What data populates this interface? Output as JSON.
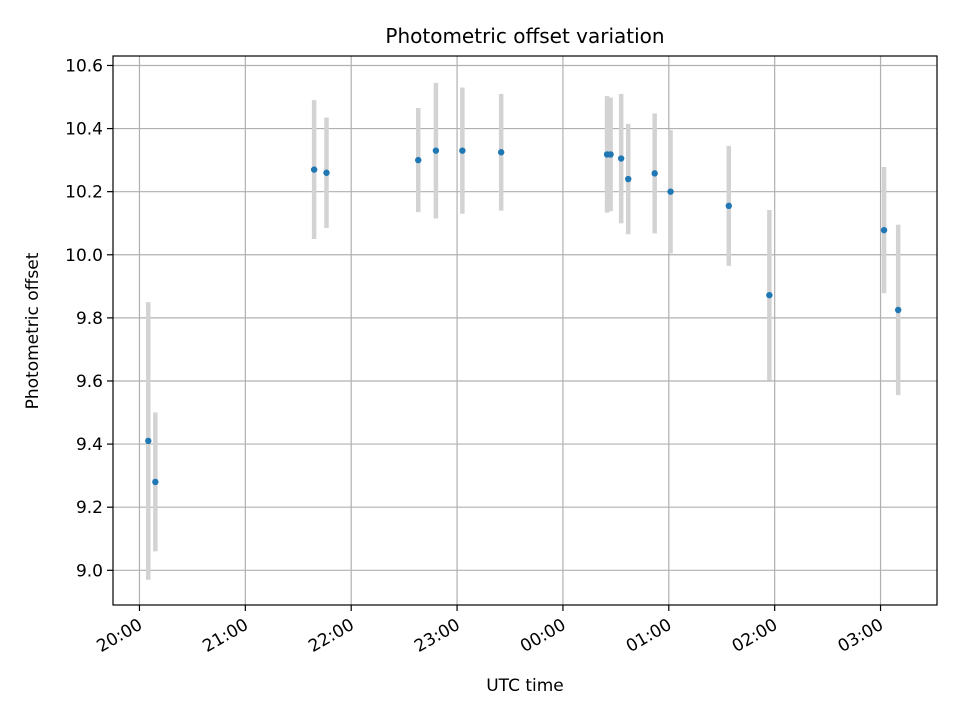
{
  "chart_data": {
    "type": "scatter",
    "title": "Photometric offset variation",
    "xlabel": "UTC time",
    "ylabel": "Photometric offset",
    "x_unit": "UTC time (HH:MM)",
    "xlim": [
      "19:45",
      "03:32"
    ],
    "ylim": [
      8.89,
      10.63
    ],
    "yticks": [
      9.0,
      9.2,
      9.4,
      9.6,
      9.8,
      10.0,
      10.2,
      10.4,
      10.6
    ],
    "ytick_labels": [
      "9.0",
      "9.2",
      "9.4",
      "9.6",
      "9.8",
      "10.0",
      "10.2",
      "10.4",
      "10.6"
    ],
    "xticks": [
      "20:00",
      "21:00",
      "22:00",
      "23:00",
      "00:00",
      "01:00",
      "02:00",
      "03:00"
    ],
    "grid": true,
    "point_color": "#1f77b4",
    "errorbar_color": "#d3d3d3",
    "points": [
      {
        "x": "20:05",
        "y": 9.41,
        "err": 0.44
      },
      {
        "x": "20:09",
        "y": 9.28,
        "err": 0.22
      },
      {
        "x": "21:39",
        "y": 10.27,
        "err": 0.22
      },
      {
        "x": "21:46",
        "y": 10.26,
        "err": 0.175
      },
      {
        "x": "22:38",
        "y": 10.3,
        "err": 0.165
      },
      {
        "x": "22:48",
        "y": 10.33,
        "err": 0.215
      },
      {
        "x": "23:03",
        "y": 10.33,
        "err": 0.2
      },
      {
        "x": "23:25",
        "y": 10.325,
        "err": 0.185
      },
      {
        "x": "00:25",
        "y": 10.318,
        "err": 0.185
      },
      {
        "x": "00:27",
        "y": 10.318,
        "err": 0.18
      },
      {
        "x": "00:33",
        "y": 10.305,
        "err": 0.205
      },
      {
        "x": "00:37",
        "y": 10.24,
        "err": 0.175
      },
      {
        "x": "00:52",
        "y": 10.258,
        "err": 0.19
      },
      {
        "x": "01:01",
        "y": 10.2,
        "err": 0.195
      },
      {
        "x": "01:34",
        "y": 10.155,
        "err": 0.19
      },
      {
        "x": "01:57",
        "y": 9.872,
        "err": 0.27
      },
      {
        "x": "03:02",
        "y": 10.078,
        "err": 0.2
      },
      {
        "x": "03:10",
        "y": 9.825,
        "err": 0.27
      }
    ]
  }
}
